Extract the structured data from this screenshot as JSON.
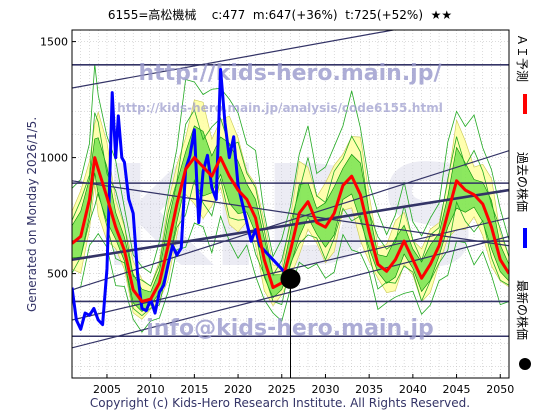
{
  "header": {
    "title": "6155=高松機械",
    "current": "c:477",
    "mid": "m:647(+36%)",
    "target": "t:725(+52%)",
    "rating": "★★"
  },
  "generated": "Generated on Monday 2026/1/5.",
  "watermarks": {
    "url1": "http://kids-hero.main.jp/",
    "url2": "http://kids-hero.main.jp/analysis/code6155.html",
    "email": "info@kids-hero.main.jp",
    "logo": "KIDS"
  },
  "legend": {
    "forecast": "ＡＩ予測",
    "past": "過去の株価",
    "latest": "最新の株価"
  },
  "copyright": "Copyright (c) Kids-Hero Research Institute. All Rights Reserved.",
  "colors": {
    "forecast": "#ff0000",
    "past": "#0000ff",
    "latest": "#000000",
    "band_outer": "#ffffa0",
    "band_inner": "#00cc00",
    "guide": "#333366",
    "watermark": "#9999cc"
  },
  "chart_data": {
    "type": "line",
    "x_ticks": [
      2005,
      2010,
      2015,
      2020,
      2025,
      2030,
      2035,
      2040,
      2045,
      2050
    ],
    "y_ticks": [
      500,
      1000,
      1500
    ],
    "xlim": [
      2001,
      2051
    ],
    "ylim": [
      50,
      1550
    ],
    "grid": true,
    "latest": {
      "x": 2026.0,
      "y": 477
    },
    "horizontal_levels": [
      230,
      380,
      640,
      890,
      1400
    ],
    "trend_lines": [
      {
        "x": [
          2001,
          2051
        ],
        "y": [
          1300,
          1640
        ]
      },
      {
        "x": [
          2001,
          2051
        ],
        "y": [
          430,
          1030
        ]
      },
      {
        "x": [
          2001,
          2051
        ],
        "y": [
          560,
          860
        ]
      },
      {
        "x": [
          2001,
          2051
        ],
        "y": [
          900,
          620
        ]
      },
      {
        "x": [
          2001,
          2051
        ],
        "y": [
          300,
          740
        ]
      },
      {
        "x": [
          2001,
          2051
        ],
        "y": [
          180,
          660
        ]
      }
    ],
    "series": [
      {
        "x": [
          2001.0,
          2001.5,
          2002.0,
          2002.5,
          2003.0,
          2003.5,
          2004.0,
          2004.5,
          2005.0,
          2005.3,
          2005.6,
          2006.0,
          2006.3,
          2006.7,
          2007.0,
          2007.5,
          2008.0,
          2008.5,
          2009.0,
          2009.5,
          2010.0,
          2010.5,
          2011.0,
          2011.5,
          2012.0,
          2012.5,
          2013.0,
          2013.5,
          2014.0,
          2014.5,
          2015.0,
          2015.5,
          2016.0,
          2016.5,
          2017.0,
          2017.5,
          2018.0,
          2018.5,
          2019.0,
          2019.5,
          2020.0,
          2020.5,
          2021.0,
          2021.5,
          2022.0,
          2022.5,
          2023.0,
          2023.5,
          2024.0,
          2024.5,
          2025.0,
          2025.5
        ],
        "y": [
          440,
          300,
          260,
          330,
          320,
          350,
          300,
          280,
          520,
          880,
          1280,
          1000,
          1180,
          1000,
          980,
          820,
          760,
          500,
          350,
          340,
          390,
          330,
          420,
          450,
          540,
          620,
          580,
          610,
          950,
          1010,
          1120,
          720,
          940,
          1010,
          870,
          820,
          1380,
          1150,
          1000,
          1090,
          880,
          800,
          720,
          640,
          690,
          620,
          600,
          580,
          560,
          540,
          520,
          500
        ]
      },
      {
        "x": [
          2001.0,
          2002.0,
          2003.0,
          2003.6,
          2004.0,
          2005.0,
          2006.0,
          2007.0,
          2008.0,
          2009.0,
          2010.0,
          2011.0,
          2012.0,
          2013.0,
          2014.0,
          2015.0,
          2016.0,
          2017.0,
          2018.0,
          2019.0,
          2020.0,
          2021.0,
          2022.0,
          2023.0,
          2024.0,
          2025.0,
          2026.0,
          2027.0,
          2028.0,
          2029.0,
          2030.0,
          2031.0,
          2032.0,
          2033.0,
          2034.0,
          2035.0,
          2036.0,
          2037.0,
          2038.0,
          2039.0,
          2040.0,
          2041.0,
          2042.0,
          2043.0,
          2044.0,
          2045.0,
          2046.0,
          2047.0,
          2048.0,
          2049.0,
          2050.0,
          2051.0
        ],
        "y": [
          630,
          660,
          820,
          1000,
          950,
          830,
          700,
          600,
          430,
          380,
          390,
          460,
          620,
          800,
          950,
          1000,
          960,
          920,
          1000,
          920,
          860,
          820,
          740,
          560,
          440,
          460,
          600,
          760,
          810,
          720,
          700,
          760,
          880,
          920,
          840,
          680,
          540,
          510,
          560,
          640,
          560,
          480,
          540,
          620,
          760,
          900,
          860,
          840,
          800,
          700,
          560,
          500
        ]
      }
    ]
  }
}
